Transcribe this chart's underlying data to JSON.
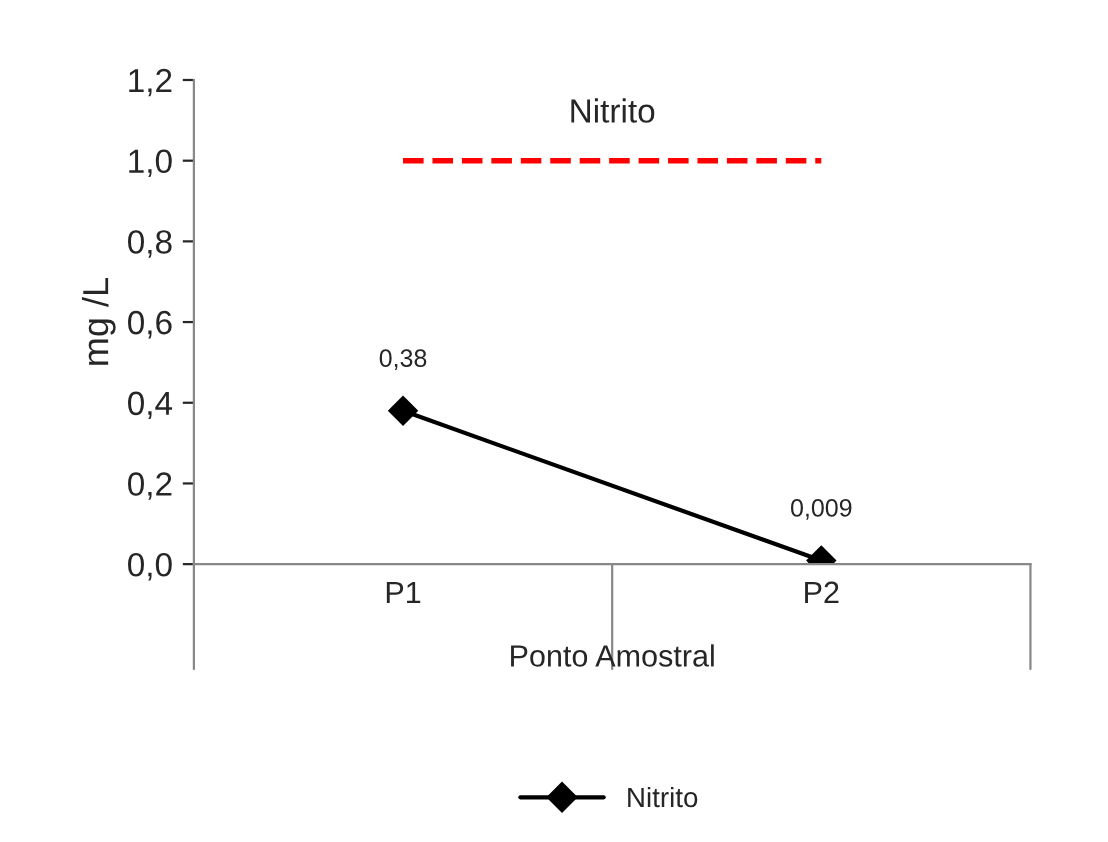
{
  "chart_data": {
    "type": "line",
    "title": "Nitrito",
    "xlabel": "Ponto Amostral",
    "ylabel": "mg /L",
    "categories": [
      "P1",
      "P2"
    ],
    "series": [
      {
        "name": "Nitrito",
        "color": "#000000",
        "values": [
          0.38,
          0.009
        ],
        "value_labels": [
          "0,38",
          "0,009"
        ]
      }
    ],
    "ylim": [
      0,
      1.2
    ],
    "yticks": [
      {
        "value": 0,
        "label": "0,0"
      },
      {
        "value": 0.2,
        "label": "0,2"
      },
      {
        "value": 0.4,
        "label": "0,4"
      },
      {
        "value": 0.6,
        "label": "0,6"
      },
      {
        "value": 0.8,
        "label": "0,8"
      },
      {
        "value": 1.0,
        "label": "1,0"
      },
      {
        "value": 1.2,
        "label": "1,2"
      }
    ],
    "ref_lines": [
      {
        "axis": "y",
        "value": 1.0,
        "color": "#ff0000",
        "line_style": "dashed"
      }
    ],
    "marker": "diamond",
    "line_style": "solid",
    "grid": false,
    "legend": "bottom"
  }
}
